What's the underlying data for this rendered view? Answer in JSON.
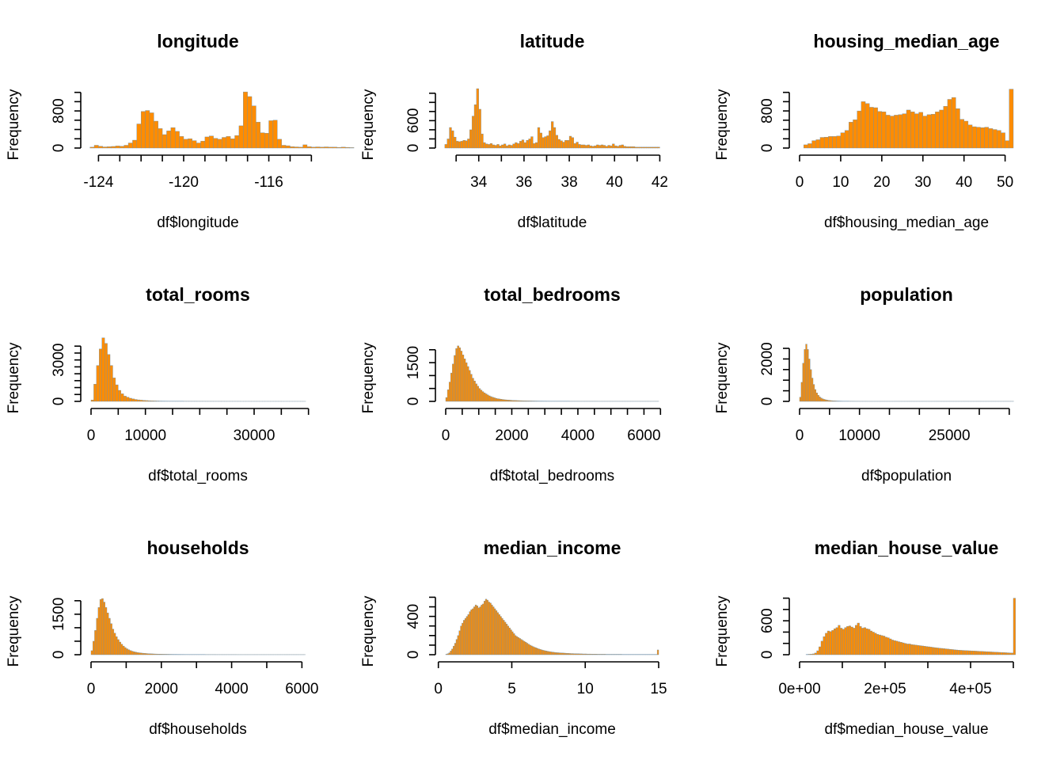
{
  "colors": {
    "bar_fill": "#ff8c00",
    "bar_border": "#6e8fa8",
    "axis": "#000000"
  },
  "chart_data": [
    {
      "type": "bar",
      "title": "longitude",
      "xlabel": "df$longitude",
      "ylabel": "Frequency",
      "xlim": [
        -124.35,
        -114.31
      ],
      "ylim": [
        0,
        1280
      ],
      "xticks": [
        -124,
        -123,
        -122,
        -121,
        -120,
        -119,
        -118,
        -117,
        -116,
        -115,
        -114
      ],
      "xtick_labels": [
        "-124",
        "",
        "",
        "",
        "-120",
        "",
        "",
        "",
        "-116",
        "",
        ""
      ],
      "yticks": [
        0,
        200,
        400,
        600,
        800,
        1000,
        1200
      ],
      "ytick_labels": [
        "0",
        "",
        "",
        "",
        "800",
        "",
        ""
      ],
      "bin_width": 0.2,
      "bin_start": -124.4,
      "values": [
        20,
        60,
        40,
        25,
        30,
        35,
        45,
        40,
        60,
        110,
        170,
        520,
        790,
        810,
        760,
        580,
        420,
        290,
        370,
        440,
        360,
        250,
        190,
        200,
        160,
        110,
        150,
        240,
        260,
        210,
        190,
        230,
        250,
        200,
        270,
        480,
        1210,
        1110,
        910,
        560,
        330,
        320,
        590,
        600,
        190,
        60,
        50,
        30,
        25,
        20,
        70,
        30,
        20,
        25,
        20,
        25,
        20,
        20,
        15,
        20,
        15,
        10
      ]
    },
    {
      "type": "bar",
      "title": "latitude",
      "xlabel": "df$latitude",
      "ylabel": "Frequency",
      "xlim": [
        32.54,
        41.95
      ],
      "ylim": [
        0,
        1300
      ],
      "xticks": [
        33,
        34,
        35,
        36,
        37,
        38,
        39,
        40,
        41,
        42
      ],
      "xtick_labels": [
        "",
        "34",
        "",
        "36",
        "",
        "38",
        "",
        "40",
        "",
        "42"
      ],
      "yticks": [
        0,
        200,
        400,
        600,
        800,
        1000,
        1200
      ],
      "ytick_labels": [
        "0",
        "",
        "",
        "600",
        "",
        "",
        ""
      ],
      "bin_width": 0.1,
      "bin_start": 32.5,
      "values": [
        80,
        200,
        450,
        380,
        240,
        150,
        140,
        150,
        170,
        160,
        200,
        400,
        700,
        950,
        1300,
        850,
        310,
        120,
        90,
        80,
        100,
        70,
        60,
        80,
        50,
        70,
        90,
        50,
        70,
        60,
        90,
        120,
        100,
        150,
        180,
        120,
        170,
        200,
        250,
        100,
        120,
        450,
        330,
        230,
        250,
        270,
        380,
        580,
        450,
        280,
        190,
        160,
        130,
        170,
        170,
        260,
        230,
        100,
        130,
        80,
        70,
        70,
        60,
        70,
        50,
        40,
        50,
        70,
        60,
        70,
        60,
        40,
        60,
        50,
        90,
        50,
        40,
        60,
        70,
        40,
        30,
        30,
        30,
        30,
        20,
        20,
        20,
        20,
        20,
        20,
        20,
        20,
        20,
        20,
        20
      ]
    },
    {
      "type": "bar",
      "title": "housing_median_age",
      "xlabel": "df$housing_median_age",
      "ylabel": "Frequency",
      "xlim": [
        0,
        52
      ],
      "ylim": [
        0,
        1280
      ],
      "xticks": [
        0,
        10,
        20,
        30,
        40,
        50
      ],
      "xtick_labels": [
        "0",
        "10",
        "20",
        "30",
        "40",
        "50"
      ],
      "yticks": [
        0,
        200,
        400,
        600,
        800,
        1000,
        1200
      ],
      "ytick_labels": [
        "0",
        "",
        "",
        "",
        "800",
        "",
        ""
      ],
      "bin_width": 1,
      "bin_start": 0,
      "values": [
        0,
        70,
        95,
        160,
        180,
        230,
        235,
        250,
        250,
        260,
        330,
        380,
        560,
        610,
        800,
        1000,
        960,
        880,
        870,
        790,
        780,
        710,
        690,
        710,
        720,
        740,
        820,
        780,
        740,
        770,
        690,
        720,
        730,
        780,
        820,
        900,
        1050,
        1090,
        850,
        620,
        580,
        500,
        460,
        450,
        440,
        450,
        420,
        400,
        380,
        330,
        160,
        1270
      ]
    },
    {
      "type": "bar",
      "title": "total_rooms",
      "xlabel": "df$total_rooms",
      "ylabel": "Frequency",
      "xlim": [
        0,
        39320
      ],
      "ylim": [
        0,
        4300
      ],
      "xticks": [
        0,
        5000,
        10000,
        15000,
        20000,
        25000,
        30000,
        35000,
        40000
      ],
      "xtick_labels": [
        "0",
        "",
        "10000",
        "",
        "",
        "",
        "30000",
        "",
        ""
      ],
      "yticks": [
        0,
        500,
        1000,
        1500,
        2000,
        2500,
        3000,
        3500,
        4000
      ],
      "ytick_labels": [
        "0",
        "",
        "",
        "",
        "",
        "",
        "3000",
        "",
        ""
      ],
      "bin_width": 500,
      "bin_start": 0,
      "values": [
        100,
        1250,
        2600,
        3800,
        4600,
        4200,
        3400,
        2600,
        1700,
        1200,
        800,
        550,
        380,
        300,
        230,
        180,
        140,
        110,
        90,
        75,
        60,
        50,
        40,
        35,
        30,
        25,
        22,
        20,
        18,
        16,
        15,
        14,
        13,
        12,
        11,
        10,
        10,
        9,
        9,
        8,
        8,
        8,
        7,
        7,
        7,
        6,
        6,
        6,
        6,
        5,
        5,
        5,
        5,
        5,
        5,
        4,
        4,
        4,
        4,
        4,
        4,
        4,
        4,
        4,
        4,
        4,
        4,
        4,
        4,
        4,
        3,
        3,
        3,
        3,
        3,
        3,
        3,
        3,
        3
      ]
    },
    {
      "type": "bar",
      "title": "total_bedrooms",
      "xlabel": "df$total_bedrooms",
      "ylabel": "Frequency",
      "xlim": [
        0,
        6445
      ],
      "ylim": [
        0,
        2300
      ],
      "xticks": [
        0,
        500,
        1000,
        1500,
        2000,
        2500,
        3000,
        3500,
        4000,
        4500,
        5000,
        5500,
        6000,
        6500
      ],
      "xtick_labels": [
        "0",
        "",
        "",
        "",
        "2000",
        "",
        "",
        "",
        "4000",
        "",
        "",
        "",
        "6000",
        ""
      ],
      "yticks": [
        0,
        500,
        1000,
        1500,
        2000
      ],
      "ytick_labels": [
        "0",
        "",
        "",
        "1500",
        ""
      ],
      "bin_width": 50,
      "bin_start": 0,
      "values": [
        150,
        450,
        750,
        1100,
        1450,
        1780,
        2050,
        2150,
        2080,
        1950,
        1800,
        1650,
        1500,
        1350,
        1200,
        1050,
        900,
        790,
        680,
        590,
        500,
        440,
        380,
        330,
        290,
        250,
        215,
        185,
        160,
        140,
        120,
        105,
        95,
        85,
        75,
        65,
        60,
        55,
        50,
        45,
        40,
        38,
        35,
        32,
        30,
        28,
        26,
        24,
        22,
        20,
        19,
        18,
        17,
        16,
        15,
        14,
        13,
        12,
        12,
        11,
        11,
        10,
        10,
        9,
        9,
        8,
        8,
        8,
        7,
        7,
        7,
        6,
        6,
        6,
        6,
        5,
        5,
        5,
        5,
        5,
        5,
        4,
        4,
        4,
        4,
        4,
        4,
        4,
        4,
        4,
        4,
        4,
        3,
        3,
        3,
        3,
        3,
        3,
        3,
        3,
        3,
        3,
        3,
        3,
        3,
        3,
        3,
        3,
        3,
        3,
        3,
        3,
        3,
        3,
        3,
        3,
        3,
        3,
        3,
        3,
        3,
        3,
        3,
        3,
        3,
        3,
        3,
        3,
        3
      ]
    },
    {
      "type": "bar",
      "title": "population",
      "xlabel": "df$population",
      "ylabel": "Frequency",
      "xlim": [
        0,
        35682
      ],
      "ylim": [
        0,
        2800
      ],
      "xticks": [
        0,
        5000,
        10000,
        15000,
        20000,
        25000,
        30000,
        35000
      ],
      "xtick_labels": [
        "0",
        "",
        "10000",
        "",
        "",
        "25000",
        "",
        ""
      ],
      "yticks": [
        0,
        500,
        1000,
        1500,
        2000,
        2500
      ],
      "ytick_labels": [
        "0",
        "",
        "",
        "",
        "2000",
        ""
      ],
      "bin_width": 250,
      "bin_start": 0,
      "values": [
        200,
        900,
        1800,
        2450,
        2700,
        2450,
        2000,
        1500,
        1100,
        800,
        560,
        400,
        290,
        210,
        160,
        120,
        95,
        75,
        60,
        48,
        40,
        34,
        28,
        24,
        21,
        18,
        16,
        14,
        12,
        11,
        10,
        9,
        8,
        7,
        7,
        6,
        6,
        5,
        5,
        5,
        4,
        4,
        4,
        4,
        4,
        3,
        3,
        3,
        3,
        3,
        3,
        3,
        3,
        3,
        3,
        3,
        3,
        3,
        3,
        3,
        3,
        3,
        3,
        3,
        3,
        3,
        3,
        3,
        3,
        3,
        3,
        3,
        3,
        3,
        3,
        3,
        3,
        3,
        3,
        3,
        3,
        3,
        3,
        3,
        3,
        3,
        3,
        3,
        3,
        3,
        3,
        3,
        3,
        3,
        3,
        3,
        3,
        3,
        3,
        3,
        3,
        3,
        3,
        3,
        3,
        3,
        3,
        3,
        3,
        3,
        3,
        3,
        3,
        3,
        3,
        3,
        3,
        3,
        3,
        3,
        3,
        3,
        3,
        3,
        3,
        3,
        3,
        3,
        3,
        3,
        3,
        3,
        3,
        3,
        3,
        3,
        3,
        3,
        3,
        3,
        3,
        3,
        3
      ]
    },
    {
      "type": "bar",
      "title": "households",
      "xlabel": "df$households",
      "ylabel": "Frequency",
      "xlim": [
        0,
        6082
      ],
      "ylim": [
        0,
        2200
      ],
      "xticks": [
        0,
        1000,
        2000,
        3000,
        4000,
        5000,
        6000
      ],
      "xtick_labels": [
        "0",
        "",
        "2000",
        "",
        "4000",
        "",
        "6000"
      ],
      "yticks": [
        0,
        500,
        1000,
        1500,
        2000
      ],
      "ytick_labels": [
        "0",
        "",
        "",
        "1500",
        ""
      ],
      "bin_width": 50,
      "bin_start": 0,
      "values": [
        150,
        500,
        900,
        1350,
        1750,
        2050,
        2080,
        1950,
        1750,
        1550,
        1350,
        1150,
        950,
        800,
        670,
        560,
        470,
        390,
        320,
        265,
        220,
        185,
        155,
        130,
        110,
        95,
        82,
        72,
        63,
        56,
        50,
        45,
        40,
        36,
        33,
        30,
        27,
        25,
        23,
        21,
        19,
        18,
        17,
        16,
        15,
        14,
        13,
        12,
        12,
        11,
        11,
        10,
        10,
        9,
        9,
        8,
        8,
        8,
        7,
        7,
        7,
        6,
        6,
        6,
        6,
        5,
        5,
        5,
        5,
        5,
        5,
        4,
        4,
        4,
        4,
        4,
        4,
        4,
        4,
        4,
        4,
        4,
        4,
        3,
        3,
        3,
        3,
        3,
        3,
        3,
        3,
        3,
        3,
        3,
        3,
        3,
        3,
        3,
        3,
        3,
        3,
        3,
        3,
        3,
        3,
        3,
        3,
        3,
        3,
        3,
        3,
        3,
        3,
        3,
        3,
        3,
        3,
        3,
        3,
        3,
        3,
        3
      ]
    },
    {
      "type": "bar",
      "title": "median_income",
      "xlabel": "df$median_income",
      "ylabel": "Frequency",
      "xlim": [
        0.5,
        15.0
      ],
      "ylim": [
        0,
        620
      ],
      "xticks": [
        0,
        5,
        10,
        15
      ],
      "xtick_labels": [
        "0",
        "5",
        "10",
        "15"
      ],
      "yticks": [
        0,
        100,
        200,
        300,
        400,
        500,
        600
      ],
      "ytick_labels": [
        "0",
        "",
        "",
        "",
        "400",
        "",
        ""
      ],
      "bin_width": 0.1,
      "bin_start": 0.5,
      "values": [
        5,
        10,
        20,
        40,
        60,
        90,
        120,
        160,
        200,
        250,
        300,
        330,
        360,
        380,
        400,
        420,
        450,
        470,
        480,
        500,
        520,
        510,
        490,
        500,
        520,
        530,
        560,
        580,
        570,
        550,
        540,
        520,
        500,
        480,
        460,
        440,
        420,
        400,
        380,
        360,
        340,
        320,
        300,
        280,
        260,
        240,
        220,
        200,
        190,
        180,
        170,
        160,
        150,
        140,
        130,
        120,
        110,
        100,
        92,
        85,
        78,
        72,
        66,
        60,
        55,
        50,
        46,
        42,
        39,
        36,
        33,
        30,
        28,
        26,
        24,
        22,
        21,
        20,
        19,
        18,
        17,
        16,
        15,
        14,
        13,
        12,
        12,
        11,
        11,
        10,
        10,
        9,
        9,
        8,
        8,
        8,
        7,
        7,
        7,
        6,
        6,
        6,
        6,
        5,
        5,
        5,
        5,
        5,
        5,
        4,
        4,
        4,
        4,
        4,
        4,
        4,
        4,
        4,
        4,
        4,
        3,
        3,
        3,
        3,
        3,
        3,
        3,
        3,
        3,
        3,
        3,
        3,
        3,
        3,
        3,
        3,
        3,
        3,
        3,
        3,
        3,
        3,
        3,
        3,
        50
      ]
    },
    {
      "type": "bar",
      "title": "median_house_value",
      "xlabel": "df$median_house_value",
      "ylabel": "Frequency",
      "xlim": [
        0,
        500001
      ],
      "ylim": [
        0,
        1050
      ],
      "xticks": [
        0,
        100000,
        200000,
        300000,
        400000,
        500000
      ],
      "xtick_labels": [
        "0e+00",
        "",
        "2e+05",
        "",
        "4e+05",
        ""
      ],
      "yticks": [
        0,
        200,
        400,
        600,
        800,
        1000
      ],
      "ytick_labels": [
        "0",
        "",
        "",
        "600",
        "",
        ""
      ],
      "bin_width": 5000,
      "bin_start": 15000,
      "values": [
        5,
        8,
        10,
        15,
        30,
        70,
        140,
        240,
        320,
        380,
        420,
        410,
        430,
        460,
        480,
        520,
        470,
        450,
        480,
        500,
        510,
        490,
        470,
        520,
        560,
        500,
        470,
        480,
        460,
        450,
        420,
        400,
        380,
        360,
        350,
        340,
        330,
        310,
        300,
        280,
        260,
        250,
        240,
        230,
        220,
        210,
        200,
        190,
        190,
        180,
        175,
        170,
        165,
        160,
        155,
        150,
        145,
        140,
        135,
        130,
        125,
        120,
        115,
        112,
        108,
        104,
        100,
        96,
        92,
        88,
        84,
        80,
        78,
        76,
        74,
        72,
        70,
        68,
        66,
        64,
        62,
        60,
        58,
        56,
        54,
        52,
        50,
        48,
        46,
        44,
        42,
        40,
        38,
        36,
        34,
        32,
        30,
        1000
      ]
    }
  ]
}
